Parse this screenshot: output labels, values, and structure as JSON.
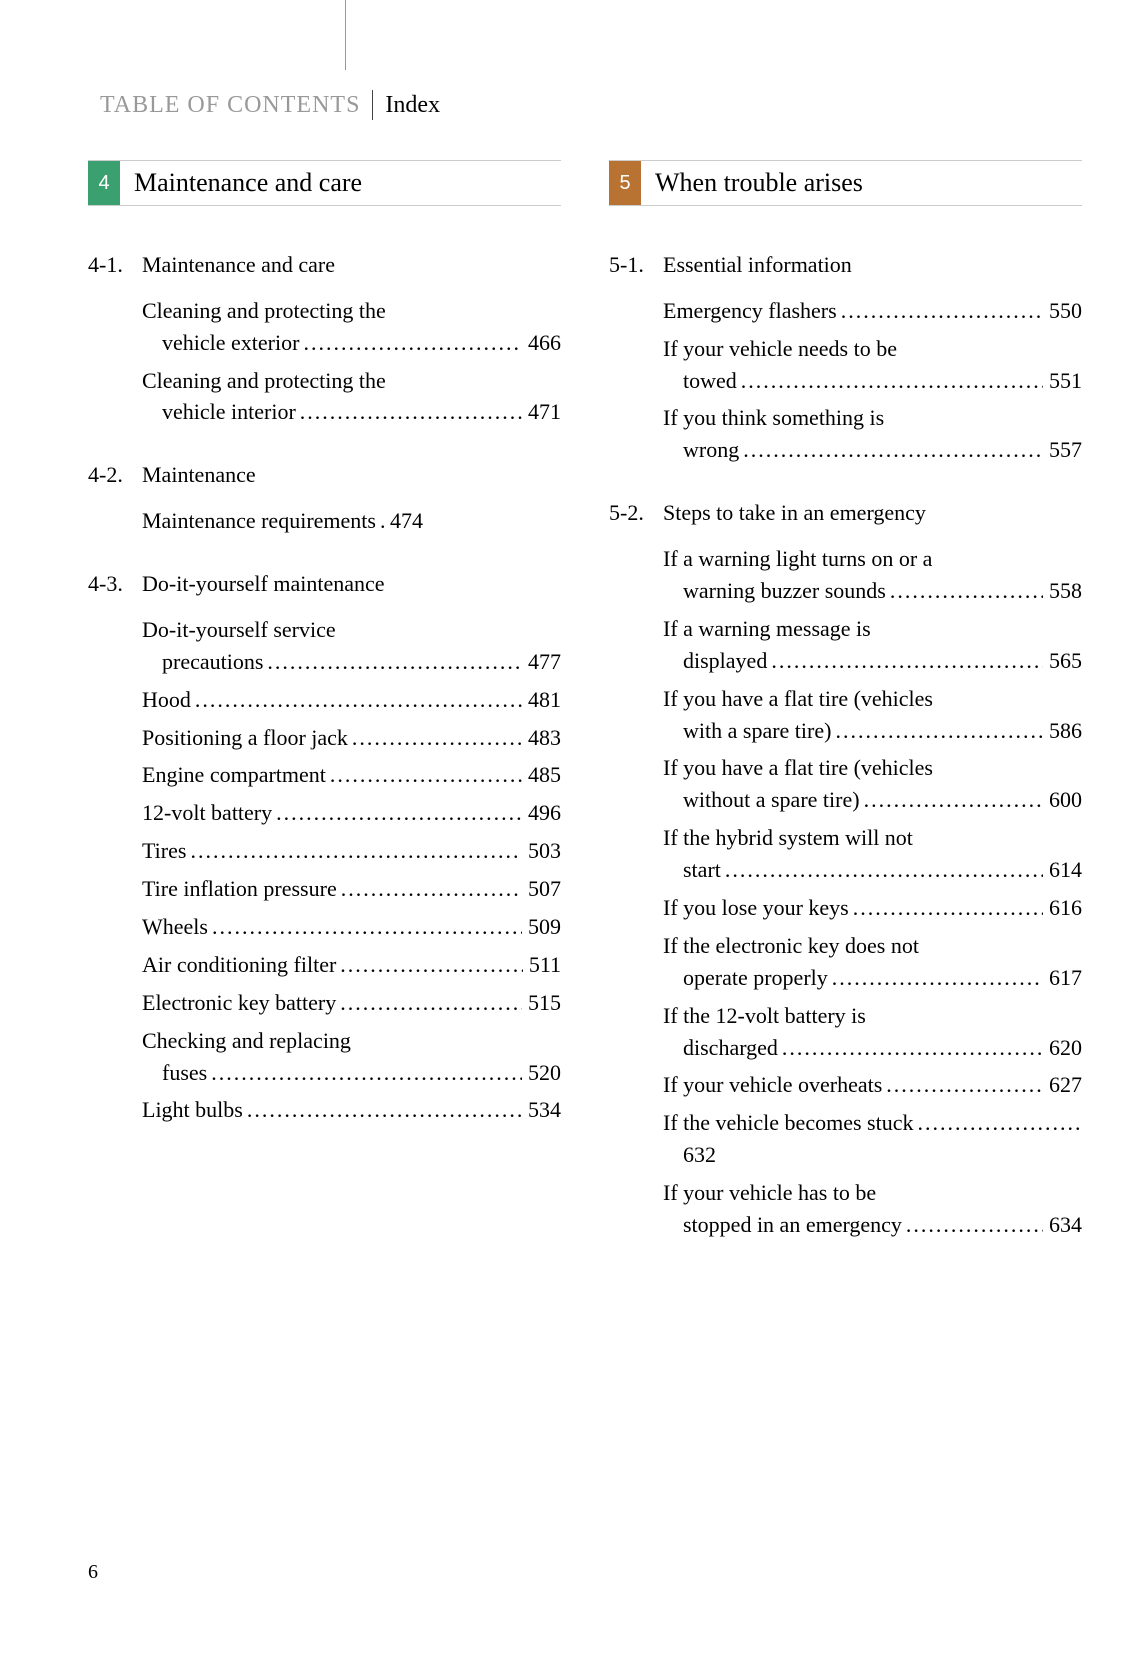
{
  "header": {
    "left_label": "TABLE OF CONTENTS",
    "right_label": "Index"
  },
  "page_number": "6",
  "columns": [
    {
      "chapter_number": "4",
      "chapter_title": "Maintenance and care",
      "chapter_color": "#3aa070",
      "sections": [
        {
          "number": "4-1.",
          "title": "Maintenance and care",
          "entries": [
            {
              "line1": "Cleaning and protecting the",
              "line2": "vehicle exterior",
              "page": "466"
            },
            {
              "line1": "Cleaning and protecting the",
              "line2": "vehicle interior",
              "page": "471"
            }
          ]
        },
        {
          "number": "4-2.",
          "title": "Maintenance",
          "entries": [
            {
              "line1": "Maintenance requirements",
              "page": "474",
              "tight": true
            }
          ]
        },
        {
          "number": "4-3.",
          "title": "Do-it-yourself maintenance",
          "entries": [
            {
              "line1": "Do-it-yourself service",
              "line2": "precautions",
              "page": "477"
            },
            {
              "line1": "Hood",
              "page": "481"
            },
            {
              "line1": "Positioning a floor jack",
              "page": "483"
            },
            {
              "line1": "Engine compartment",
              "page": "485"
            },
            {
              "line1": "12-volt battery",
              "page": "496"
            },
            {
              "line1": "Tires",
              "page": "503"
            },
            {
              "line1": "Tire inflation pressure",
              "page": "507"
            },
            {
              "line1": "Wheels",
              "page": "509"
            },
            {
              "line1": "Air conditioning filter",
              "page": "511"
            },
            {
              "line1": "Electronic key battery",
              "page": "515"
            },
            {
              "line1": "Checking and replacing",
              "line2": "fuses",
              "page": "520"
            },
            {
              "line1": "Light bulbs",
              "page": "534"
            }
          ]
        }
      ]
    },
    {
      "chapter_number": "5",
      "chapter_title": "When trouble arises",
      "chapter_color": "#b87333",
      "sections": [
        {
          "number": "5-1.",
          "title": "Essential information",
          "entries": [
            {
              "line1": "Emergency flashers",
              "page": "550"
            },
            {
              "line1": "If your vehicle needs to be",
              "line2": "towed",
              "page": "551"
            },
            {
              "line1": "If you think something is",
              "line2": "wrong",
              "page": "557"
            }
          ]
        },
        {
          "number": "5-2.",
          "title": "Steps to take in an emergency",
          "entries": [
            {
              "line1": "If a warning light turns on or a",
              "line2": "warning buzzer sounds",
              "page": "558"
            },
            {
              "line1": "If a warning message is",
              "line2": "displayed",
              "page": "565"
            },
            {
              "line1": "If you have a flat tire (vehicles",
              "line2": "with a spare tire)",
              "page": "586"
            },
            {
              "line1": "If you have a flat tire (vehicles",
              "line2": "without a spare tire)",
              "page": "600"
            },
            {
              "line1": "If the hybrid system will not",
              "line2": "start",
              "page": "614"
            },
            {
              "line1": "If you lose your keys",
              "page": "616"
            },
            {
              "line1": "If the electronic key does not",
              "line2": "operate properly",
              "page": "617"
            },
            {
              "line1": "If the 12-volt battery is",
              "line2": "discharged",
              "page": "620"
            },
            {
              "line1": "If your vehicle overheats",
              "page": "627"
            },
            {
              "line1": "If the vehicle becomes stuck",
              "line2": "",
              "page": "632",
              "nobreakdots": true
            },
            {
              "line1": "If your vehicle has to be",
              "line2": "stopped in an emergency",
              "page": "634"
            }
          ]
        }
      ]
    }
  ]
}
